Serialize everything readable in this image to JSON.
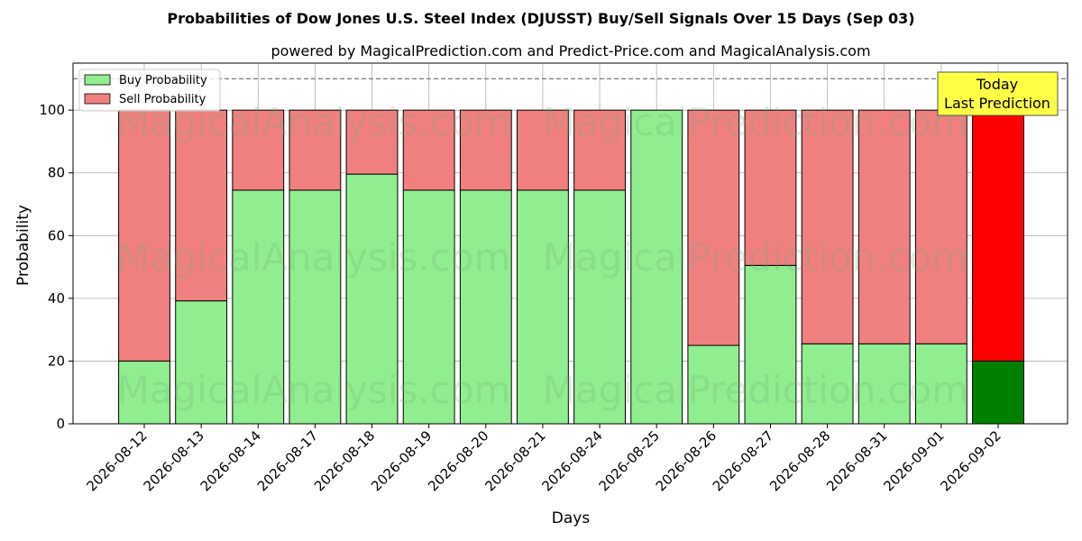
{
  "chart_data": {
    "type": "bar",
    "stacked": true,
    "title": "Probabilities of Dow Jones U.S. Steel Index (DJUSST) Buy/Sell Signals Over 15 Days (Sep 03)",
    "subtitle": "powered by MagicalPrediction.com and Predict-Price.com and MagicalAnalysis.com",
    "xlabel": "Days",
    "ylabel": "Probability",
    "ylim": [
      0,
      115
    ],
    "yticks": [
      0,
      20,
      40,
      60,
      80,
      100
    ],
    "reference_line": 110,
    "grid": true,
    "legend_position": "top-left",
    "categories": [
      "2026-08-12",
      "2026-08-13",
      "2026-08-14",
      "2026-08-17",
      "2026-08-18",
      "2026-08-19",
      "2026-08-20",
      "2026-08-21",
      "2026-08-24",
      "2026-08-25",
      "2026-08-26",
      "2026-08-27",
      "2026-08-28",
      "2026-08-31",
      "2026-09-01",
      "2026-09-02"
    ],
    "series": [
      {
        "name": "Buy Probability",
        "color": "#90ee90",
        "values": [
          20,
          39.2,
          74.5,
          74.5,
          79.6,
          74.5,
          74.5,
          74.5,
          74.5,
          100,
          25,
          50.5,
          25.5,
          25.5,
          25.5,
          20
        ]
      },
      {
        "name": "Sell Probability",
        "color": "#f08080",
        "values": [
          80,
          60.8,
          25.5,
          25.5,
          20.4,
          25.5,
          25.5,
          25.5,
          25.5,
          0,
          75,
          49.5,
          74.5,
          74.5,
          74.5,
          80
        ]
      }
    ],
    "highlight": {
      "index": 15,
      "buy_color": "#008000",
      "sell_color": "#ff0000"
    },
    "annotation": {
      "lines": [
        "Today",
        "Last Prediction"
      ],
      "background": "#ffff44"
    },
    "watermarks": [
      "MagicalAnalysis.com",
      "MagicalPrediction.com"
    ]
  }
}
